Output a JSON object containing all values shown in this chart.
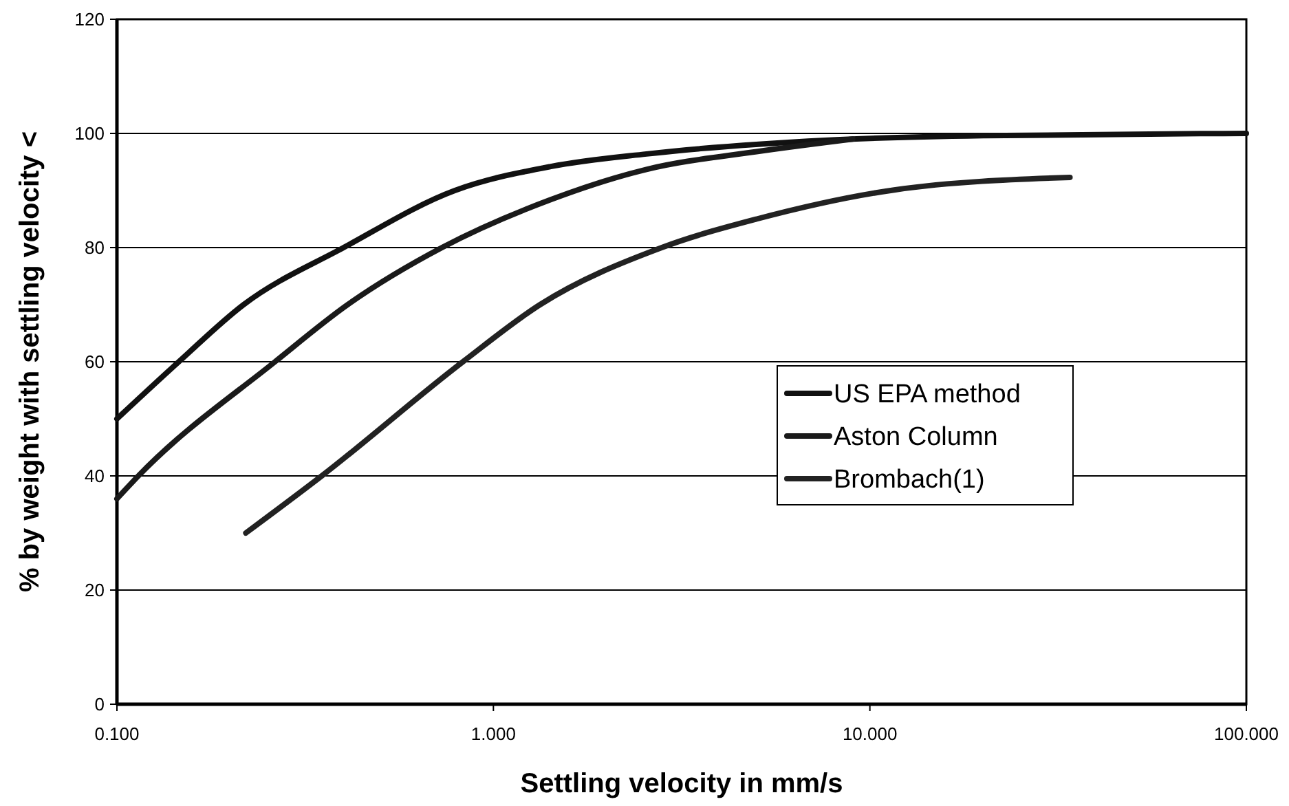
{
  "chart_data": {
    "type": "line",
    "xlabel": "Settling velocity in mm/s",
    "ylabel": "% by weight with settling velocity <",
    "log": "x",
    "xlim": [
      0.1,
      100
    ],
    "xticks": [
      {
        "value": 0.1,
        "label": "0.100"
      },
      {
        "value": 1,
        "label": "1.000"
      },
      {
        "value": 10,
        "label": "10.000"
      },
      {
        "value": 100,
        "label": "100.000"
      }
    ],
    "ylim": [
      0,
      120
    ],
    "yticks": [
      0,
      20,
      40,
      60,
      80,
      100,
      120
    ],
    "grid": "y",
    "legend": "right",
    "line_style": "solid",
    "marker": "none",
    "series": [
      {
        "name": "US EPA method",
        "color": "#111111",
        "x": [
          0.1,
          0.146,
          0.217,
          0.4,
          0.79,
          1.42,
          2.55,
          7.6,
          20,
          100
        ],
        "values": [
          50,
          60,
          70,
          80,
          90,
          94.2,
          96.4,
          98.8,
          99.6,
          100
        ]
      },
      {
        "name": "Aston Column",
        "color": "#1a1a1a",
        "x": [
          0.1,
          0.114,
          0.263,
          0.41,
          0.73,
          1.42,
          2.55,
          5.0,
          9.0
        ],
        "values": [
          36,
          40,
          60,
          70,
          80,
          88.4,
          93.7,
          96.8,
          99
        ]
      },
      {
        "name": "Brombach(1)",
        "color": "#222222",
        "x": [
          0.22,
          0.35,
          0.83,
          1.33,
          2.8,
          5.0,
          11.6,
          34
        ],
        "values": [
          30,
          40,
          60,
          70,
          80,
          85,
          90.1,
          92.3
        ]
      }
    ]
  }
}
